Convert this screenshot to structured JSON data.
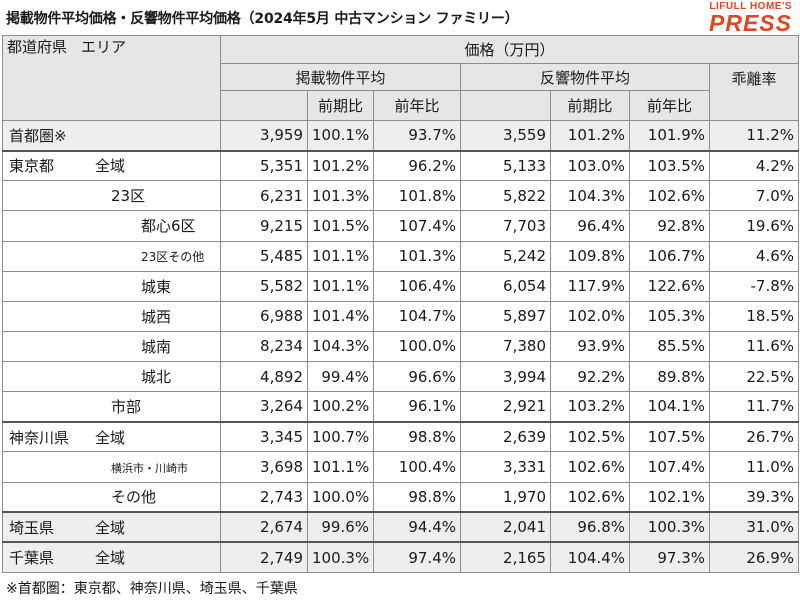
{
  "title": "掲載物件平均価格・反響物件平均価格（2024年5月 中古マンション ファミリー）",
  "logo": {
    "line1": "LIFULL HOME'S",
    "line2": "PRESS"
  },
  "header": {
    "region_col": "都道府県",
    "area_col": "エリア",
    "price_group": "価格（万円）",
    "listed_avg": "掲載物件平均",
    "response_avg": "反響物件平均",
    "divergence": "乖離率",
    "prev_period": "前期比",
    "prev_year": "前年比"
  },
  "rows": [
    {
      "pref": "首都圏※",
      "area": "",
      "listed": "3,959",
      "listed_pp": "100.1%",
      "listed_py": "93.7%",
      "resp": "3,559",
      "resp_pp": "101.2%",
      "resp_py": "101.9%",
      "div": "11.2%"
    },
    {
      "pref": "東京都",
      "area": "全域",
      "listed": "5,351",
      "listed_pp": "101.2%",
      "listed_py": "96.2%",
      "resp": "5,133",
      "resp_pp": "103.0%",
      "resp_py": "103.5%",
      "div": "4.2%"
    },
    {
      "pref": "",
      "area": "23区",
      "listed": "6,231",
      "listed_pp": "101.3%",
      "listed_py": "101.8%",
      "resp": "5,822",
      "resp_pp": "104.3%",
      "resp_py": "102.6%",
      "div": "7.0%"
    },
    {
      "pref": "",
      "area": "都心6区",
      "listed": "9,215",
      "listed_pp": "101.5%",
      "listed_py": "107.4%",
      "resp": "7,703",
      "resp_pp": "96.4%",
      "resp_py": "92.8%",
      "div": "19.6%"
    },
    {
      "pref": "",
      "area": "23区その他",
      "listed": "5,485",
      "listed_pp": "101.1%",
      "listed_py": "101.3%",
      "resp": "5,242",
      "resp_pp": "109.8%",
      "resp_py": "106.7%",
      "div": "4.6%"
    },
    {
      "pref": "",
      "area": "城東",
      "listed": "5,582",
      "listed_pp": "101.1%",
      "listed_py": "106.4%",
      "resp": "6,054",
      "resp_pp": "117.9%",
      "resp_py": "122.6%",
      "div": "-7.8%"
    },
    {
      "pref": "",
      "area": "城西",
      "listed": "6,988",
      "listed_pp": "101.4%",
      "listed_py": "104.7%",
      "resp": "5,897",
      "resp_pp": "102.0%",
      "resp_py": "105.3%",
      "div": "18.5%"
    },
    {
      "pref": "",
      "area": "城南",
      "listed": "8,234",
      "listed_pp": "104.3%",
      "listed_py": "100.0%",
      "resp": "7,380",
      "resp_pp": "93.9%",
      "resp_py": "85.5%",
      "div": "11.6%"
    },
    {
      "pref": "",
      "area": "城北",
      "listed": "4,892",
      "listed_pp": "99.4%",
      "listed_py": "96.6%",
      "resp": "3,994",
      "resp_pp": "92.2%",
      "resp_py": "89.8%",
      "div": "22.5%"
    },
    {
      "pref": "",
      "area": "市部",
      "listed": "3,264",
      "listed_pp": "100.2%",
      "listed_py": "96.1%",
      "resp": "2,921",
      "resp_pp": "103.2%",
      "resp_py": "104.1%",
      "div": "11.7%"
    },
    {
      "pref": "神奈川県",
      "area": "全域",
      "listed": "3,345",
      "listed_pp": "100.7%",
      "listed_py": "98.8%",
      "resp": "2,639",
      "resp_pp": "102.5%",
      "resp_py": "107.5%",
      "div": "26.7%"
    },
    {
      "pref": "",
      "area": "横浜市・川崎市",
      "listed": "3,698",
      "listed_pp": "101.1%",
      "listed_py": "100.4%",
      "resp": "3,331",
      "resp_pp": "102.6%",
      "resp_py": "107.4%",
      "div": "11.0%"
    },
    {
      "pref": "",
      "area": "その他",
      "listed": "2,743",
      "listed_pp": "100.0%",
      "listed_py": "98.8%",
      "resp": "1,970",
      "resp_pp": "102.6%",
      "resp_py": "102.1%",
      "div": "39.3%"
    },
    {
      "pref": "埼玉県",
      "area": "全域",
      "listed": "2,674",
      "listed_pp": "99.6%",
      "listed_py": "94.4%",
      "resp": "2,041",
      "resp_pp": "96.8%",
      "resp_py": "100.3%",
      "div": "31.0%"
    },
    {
      "pref": "千葉県",
      "area": "全域",
      "listed": "2,749",
      "listed_pp": "100.3%",
      "listed_py": "97.4%",
      "resp": "2,165",
      "resp_pp": "104.4%",
      "resp_py": "97.3%",
      "div": "26.9%"
    }
  ],
  "note": "※首都圏：東京都、神奈川県、埼玉県、千葉県"
}
